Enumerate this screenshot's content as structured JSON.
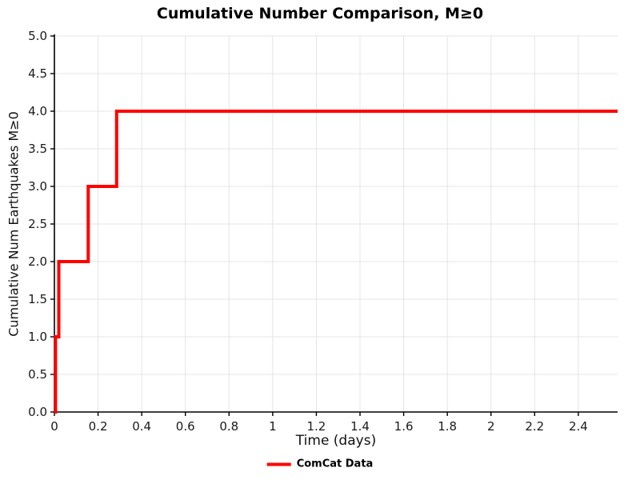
{
  "chart_data": {
    "type": "line",
    "title": "Cumulative Number Comparison, M≥0",
    "xlabel": "Time (days)",
    "ylabel": "Cumulative Num Earthquakes M≥0",
    "xlim": [
      0,
      2.58
    ],
    "ylim": [
      0,
      5
    ],
    "xticks": [
      0,
      0.2,
      0.4,
      0.6,
      0.8,
      1,
      1.2,
      1.4,
      1.6,
      1.8,
      2,
      2.2,
      2.4
    ],
    "xtick_labels": [
      "0",
      "0.2",
      "0.4",
      "0.6",
      "0.8",
      "1",
      "1.2",
      "1.4",
      "1.6",
      "1.8",
      "2",
      "2.2",
      "2.4"
    ],
    "yticks": [
      0,
      0.5,
      1,
      1.5,
      2,
      2.5,
      3,
      3.5,
      4,
      4.5,
      5
    ],
    "ytick_labels": [
      "0.0",
      "0.5",
      "1.0",
      "1.5",
      "2.0",
      "2.5",
      "3.0",
      "3.5",
      "4.0",
      "4.5",
      "5.0"
    ],
    "grid": true,
    "grid_color": "#e4e4e4",
    "axis_color": "#000000",
    "tick_label_color": "#1a1a1a",
    "legend": {
      "position": "bottom",
      "entries": [
        {
          "label": "ComCat Data",
          "color": "#ff0000"
        }
      ]
    },
    "series": [
      {
        "name": "ComCat Data",
        "color": "#ff0000",
        "line_width": 4,
        "step": true,
        "event_times_days": [
          0.005,
          0.02,
          0.155,
          0.285
        ],
        "points": [
          [
            0,
            0
          ],
          [
            0.005,
            0
          ],
          [
            0.005,
            1
          ],
          [
            0.02,
            1
          ],
          [
            0.02,
            2
          ],
          [
            0.155,
            2
          ],
          [
            0.155,
            3
          ],
          [
            0.285,
            3
          ],
          [
            0.285,
            4
          ],
          [
            2.58,
            4
          ]
        ]
      }
    ]
  }
}
